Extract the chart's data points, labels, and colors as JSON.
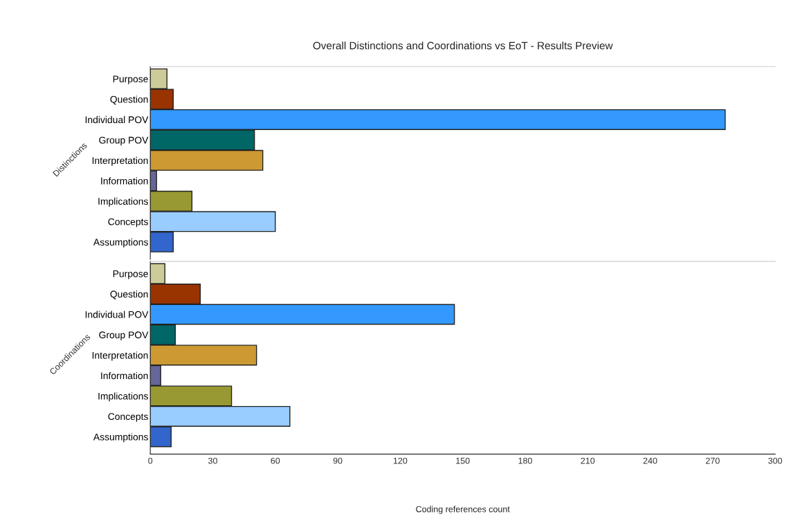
{
  "chart_data": [
    {
      "type": "bar",
      "orientation": "horizontal",
      "title": "Overall Distinctions and Coordinations vs EoT - Results Preview",
      "ylabel": "Distinctions",
      "categories": [
        "Purpose",
        "Question",
        "Individual POV",
        "Group POV",
        "Interpretation",
        "Information",
        "Implications",
        "Concepts",
        "Assumptions"
      ],
      "values": [
        8,
        11,
        276,
        50,
        54,
        3,
        20,
        60,
        11
      ],
      "colors": [
        "#cccc99",
        "#993300",
        "#3399ff",
        "#006666",
        "#cc9933",
        "#666699",
        "#999933",
        "#99ccff",
        "#3366cc"
      ],
      "xlim": [
        0,
        300
      ],
      "xticks": [
        0,
        30,
        60,
        90,
        120,
        150,
        180,
        210,
        240,
        270,
        300
      ],
      "tick_labels": "y",
      "grid": false
    },
    {
      "type": "bar",
      "orientation": "horizontal",
      "ylabel": "Coordinations",
      "xlabel": "Coding references count",
      "categories": [
        "Purpose",
        "Question",
        "Individual POV",
        "Group POV",
        "Interpretation",
        "Information",
        "Implications",
        "Concepts",
        "Assumptions"
      ],
      "values": [
        7,
        24,
        146,
        12,
        51,
        5,
        39,
        67,
        10
      ],
      "colors": [
        "#cccc99",
        "#993300",
        "#3399ff",
        "#006666",
        "#cc9933",
        "#666699",
        "#999933",
        "#99ccff",
        "#3366cc"
      ],
      "xlim": [
        0,
        300
      ],
      "xticks": [
        0,
        30,
        60,
        90,
        120,
        150,
        180,
        210,
        240,
        270,
        300
      ],
      "grid": false
    }
  ]
}
